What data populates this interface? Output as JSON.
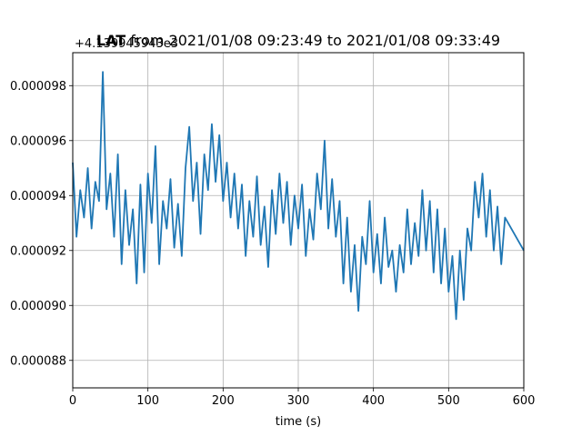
{
  "chart_data": {
    "type": "line",
    "title_bold": "LAT",
    "title_rest": " from 2021/01/08 09:23:49 to 2021/01/08 09:33:49",
    "xlabel": "time (s)",
    "ylabel": "",
    "y_offset_label": "+4.139945943e3",
    "xlim": [
      0,
      600
    ],
    "ylim": [
      8.7e-05,
      9.92e-05
    ],
    "x_ticks": [
      0,
      100,
      200,
      300,
      400,
      500,
      600
    ],
    "x_tick_labels": [
      "0",
      "100",
      "200",
      "300",
      "400",
      "500",
      "600"
    ],
    "y_ticks": [
      8.8e-05,
      9e-05,
      9.2e-05,
      9.4e-05,
      9.6e-05,
      9.8e-05
    ],
    "y_tick_labels": [
      "0.000088",
      "0.000090",
      "0.000092",
      "0.000094",
      "0.000096",
      "0.000098"
    ],
    "grid": true,
    "series": [
      {
        "color": "#1f77b4",
        "x": [
          0,
          5,
          10,
          15,
          20,
          25,
          30,
          35,
          40,
          45,
          50,
          55,
          60,
          65,
          70,
          75,
          80,
          85,
          90,
          95,
          100,
          105,
          110,
          115,
          120,
          125,
          130,
          135,
          140,
          145,
          150,
          155,
          160,
          165,
          170,
          175,
          180,
          185,
          190,
          195,
          200,
          205,
          210,
          215,
          220,
          225,
          230,
          235,
          240,
          245,
          250,
          255,
          260,
          265,
          270,
          275,
          280,
          285,
          290,
          295,
          300,
          305,
          310,
          315,
          320,
          325,
          330,
          335,
          340,
          345,
          350,
          355,
          360,
          365,
          370,
          375,
          380,
          385,
          390,
          395,
          400,
          405,
          410,
          415,
          420,
          425,
          430,
          435,
          440,
          445,
          450,
          455,
          460,
          465,
          470,
          475,
          480,
          485,
          490,
          495,
          500,
          505,
          510,
          515,
          520,
          525,
          530,
          535,
          540,
          545,
          550,
          555,
          560,
          565,
          570,
          575,
          600
        ],
        "y": [
          9.52e-05,
          9.25e-05,
          9.42e-05,
          9.32e-05,
          9.5e-05,
          9.28e-05,
          9.45e-05,
          9.38e-05,
          9.85e-05,
          9.35e-05,
          9.48e-05,
          9.25e-05,
          9.55e-05,
          9.15e-05,
          9.42e-05,
          9.22e-05,
          9.35e-05,
          9.08e-05,
          9.44e-05,
          9.12e-05,
          9.48e-05,
          9.3e-05,
          9.58e-05,
          9.15e-05,
          9.38e-05,
          9.28e-05,
          9.46e-05,
          9.21e-05,
          9.37e-05,
          9.18e-05,
          9.5e-05,
          9.65e-05,
          9.38e-05,
          9.52e-05,
          9.26e-05,
          9.55e-05,
          9.42e-05,
          9.66e-05,
          9.45e-05,
          9.62e-05,
          9.38e-05,
          9.52e-05,
          9.32e-05,
          9.48e-05,
          9.28e-05,
          9.44e-05,
          9.18e-05,
          9.38e-05,
          9.25e-05,
          9.47e-05,
          9.22e-05,
          9.36e-05,
          9.14e-05,
          9.42e-05,
          9.26e-05,
          9.48e-05,
          9.3e-05,
          9.45e-05,
          9.22e-05,
          9.4e-05,
          9.28e-05,
          9.44e-05,
          9.18e-05,
          9.35e-05,
          9.24e-05,
          9.48e-05,
          9.35e-05,
          9.6e-05,
          9.28e-05,
          9.46e-05,
          9.25e-05,
          9.38e-05,
          9.08e-05,
          9.32e-05,
          9.05e-05,
          9.22e-05,
          8.98e-05,
          9.25e-05,
          9.15e-05,
          9.38e-05,
          9.12e-05,
          9.26e-05,
          9.08e-05,
          9.32e-05,
          9.14e-05,
          9.2e-05,
          9.05e-05,
          9.22e-05,
          9.12e-05,
          9.35e-05,
          9.15e-05,
          9.3e-05,
          9.18e-05,
          9.42e-05,
          9.2e-05,
          9.38e-05,
          9.12e-05,
          9.35e-05,
          9.08e-05,
          9.28e-05,
          9.05e-05,
          9.18e-05,
          8.95e-05,
          9.2e-05,
          9.02e-05,
          9.28e-05,
          9.2e-05,
          9.45e-05,
          9.32e-05,
          9.48e-05,
          9.25e-05,
          9.42e-05,
          9.2e-05,
          9.36e-05,
          9.15e-05,
          9.32e-05,
          9.2e-05
        ]
      }
    ]
  }
}
